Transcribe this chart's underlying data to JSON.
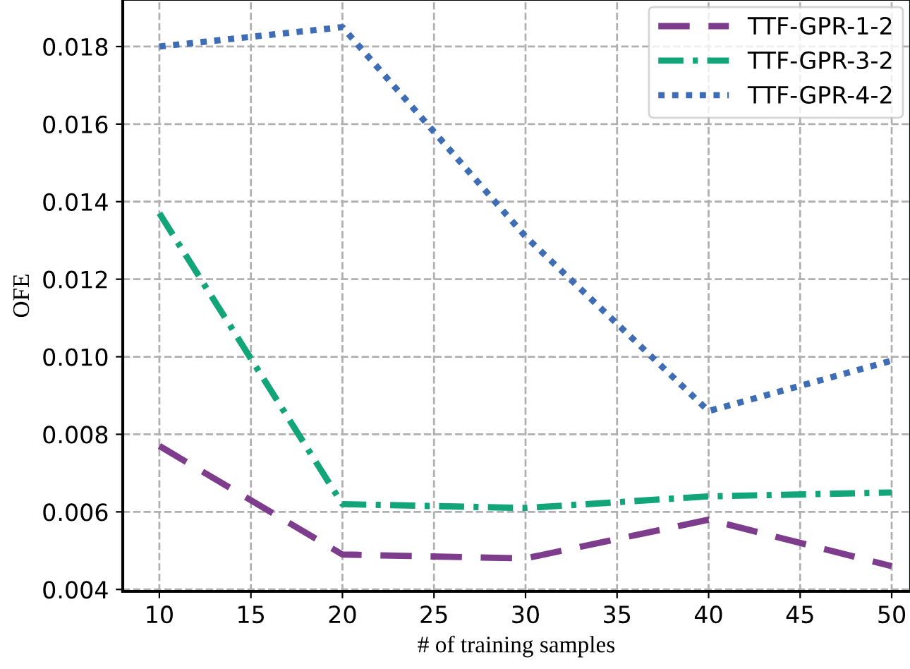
{
  "chart_data": {
    "type": "line",
    "xlabel": "# of training samples",
    "ylabel": "OFE",
    "x": [
      10,
      20,
      30,
      40,
      50
    ],
    "series": [
      {
        "name": "TTF-GPR-1-2",
        "color": "#7d3c8c",
        "line_style": "dashed",
        "values": [
          0.0077,
          0.0049,
          0.0048,
          0.0058,
          0.0046
        ]
      },
      {
        "name": "TTF-GPR-3-2",
        "color": "#12a579",
        "line_style": "dashdot",
        "values": [
          0.0137,
          0.0062,
          0.0061,
          0.0064,
          0.0065
        ]
      },
      {
        "name": "TTF-GPR-4-2",
        "color": "#3f6db5",
        "line_style": "dotted",
        "values": [
          0.018,
          0.0185,
          0.0131,
          0.0086,
          0.0099
        ]
      }
    ],
    "xlim": [
      8,
      51
    ],
    "ylim": [
      0.00395,
      0.0192
    ],
    "xticks": [
      10,
      15,
      20,
      25,
      30,
      35,
      40,
      45,
      50
    ],
    "yticks": [
      {
        "value": 0.004,
        "label": "0.004"
      },
      {
        "value": 0.006,
        "label": "0.006"
      },
      {
        "value": 0.008,
        "label": "0.008"
      },
      {
        "value": 0.01,
        "label": "0.010"
      },
      {
        "value": 0.012,
        "label": "0.012"
      },
      {
        "value": 0.014,
        "label": "0.014"
      },
      {
        "value": 0.016,
        "label": "0.016"
      },
      {
        "value": 0.018,
        "label": "0.018"
      }
    ],
    "grid": true,
    "legend": "top right",
    "marker": "none"
  }
}
